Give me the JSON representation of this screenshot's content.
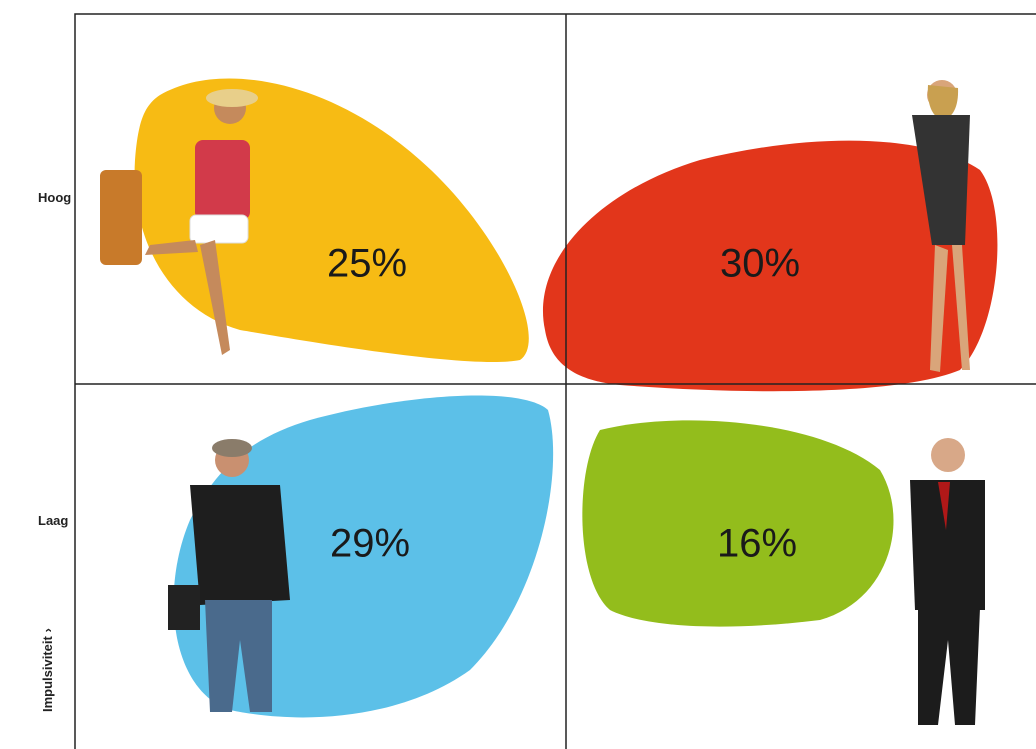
{
  "y_axis": {
    "title": "Impulsiviteit ›",
    "labels": [
      "Hoog",
      "Laag"
    ]
  },
  "quadrants": [
    {
      "value_label": "25%"
    },
    {
      "value_label": "30%"
    },
    {
      "value_label": "29%"
    },
    {
      "value_label": "16%"
    }
  ]
}
